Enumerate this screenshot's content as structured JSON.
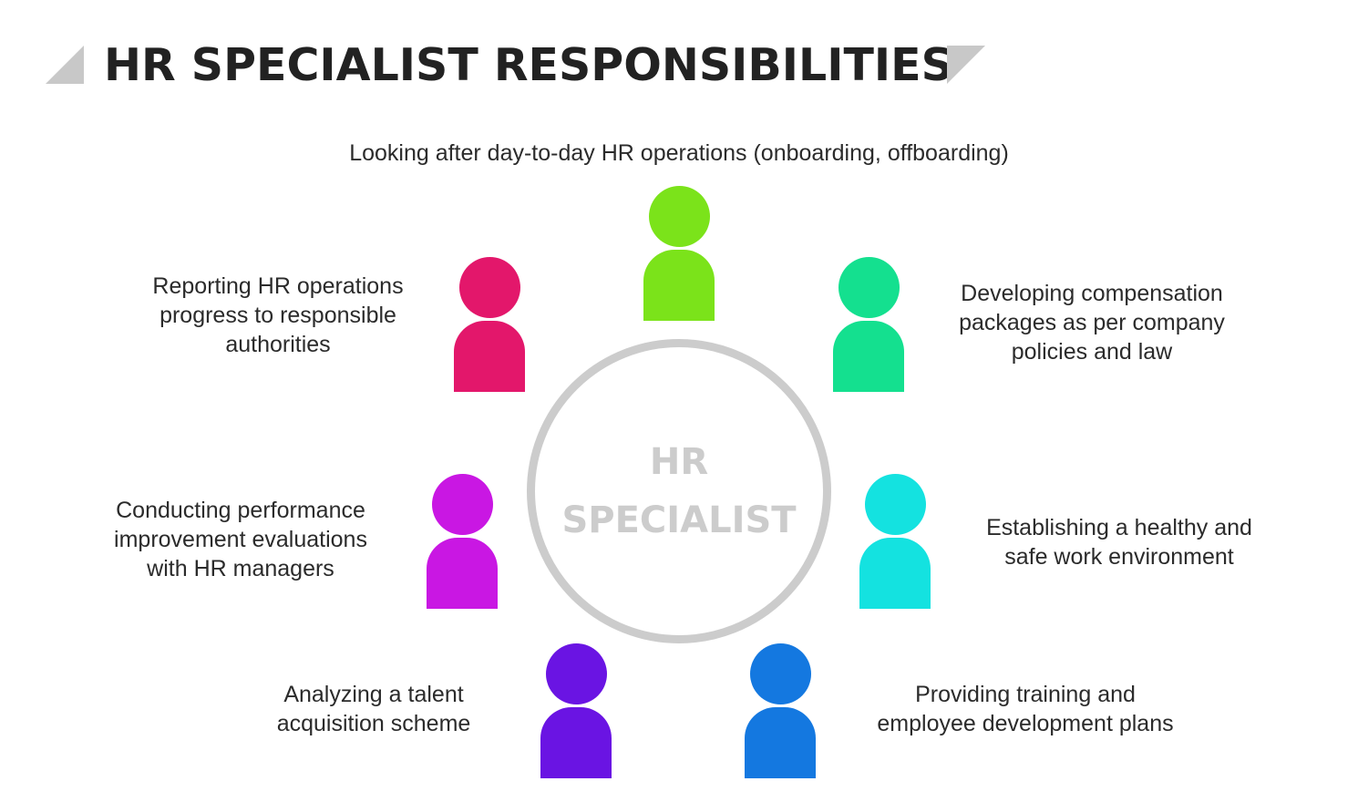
{
  "title": "HR SPECIALIST RESPONSIBILITIES",
  "center": {
    "line1": "HR",
    "line2": "SPECIALIST"
  },
  "colors": {
    "top": "#7be31a",
    "top_left": "#e3176b",
    "top_right": "#14e08f",
    "mid_left": "#c917e3",
    "mid_right": "#14e2e0",
    "bottom_left": "#6a14e3",
    "bottom_right": "#1478e0",
    "ring": "#cccccc"
  },
  "responsibilities": {
    "top": {
      "lines": [
        "Looking after day-to-day HR operations (onboarding, offboarding)"
      ]
    },
    "top_left": {
      "lines": [
        "Reporting HR operations",
        "progress to responsible",
        "authorities"
      ]
    },
    "top_right": {
      "lines": [
        "Developing compensation",
        "packages as per company",
        "policies and law"
      ]
    },
    "mid_left": {
      "lines": [
        "Conducting performance",
        "improvement evaluations",
        "with HR managers"
      ]
    },
    "mid_right": {
      "lines": [
        "Establishing a healthy and",
        "safe work environment"
      ]
    },
    "bottom_left": {
      "lines": [
        "Analyzing a talent",
        "acquisition scheme"
      ]
    },
    "bottom_right": {
      "lines": [
        "Providing training and",
        "employee development plans"
      ]
    }
  }
}
